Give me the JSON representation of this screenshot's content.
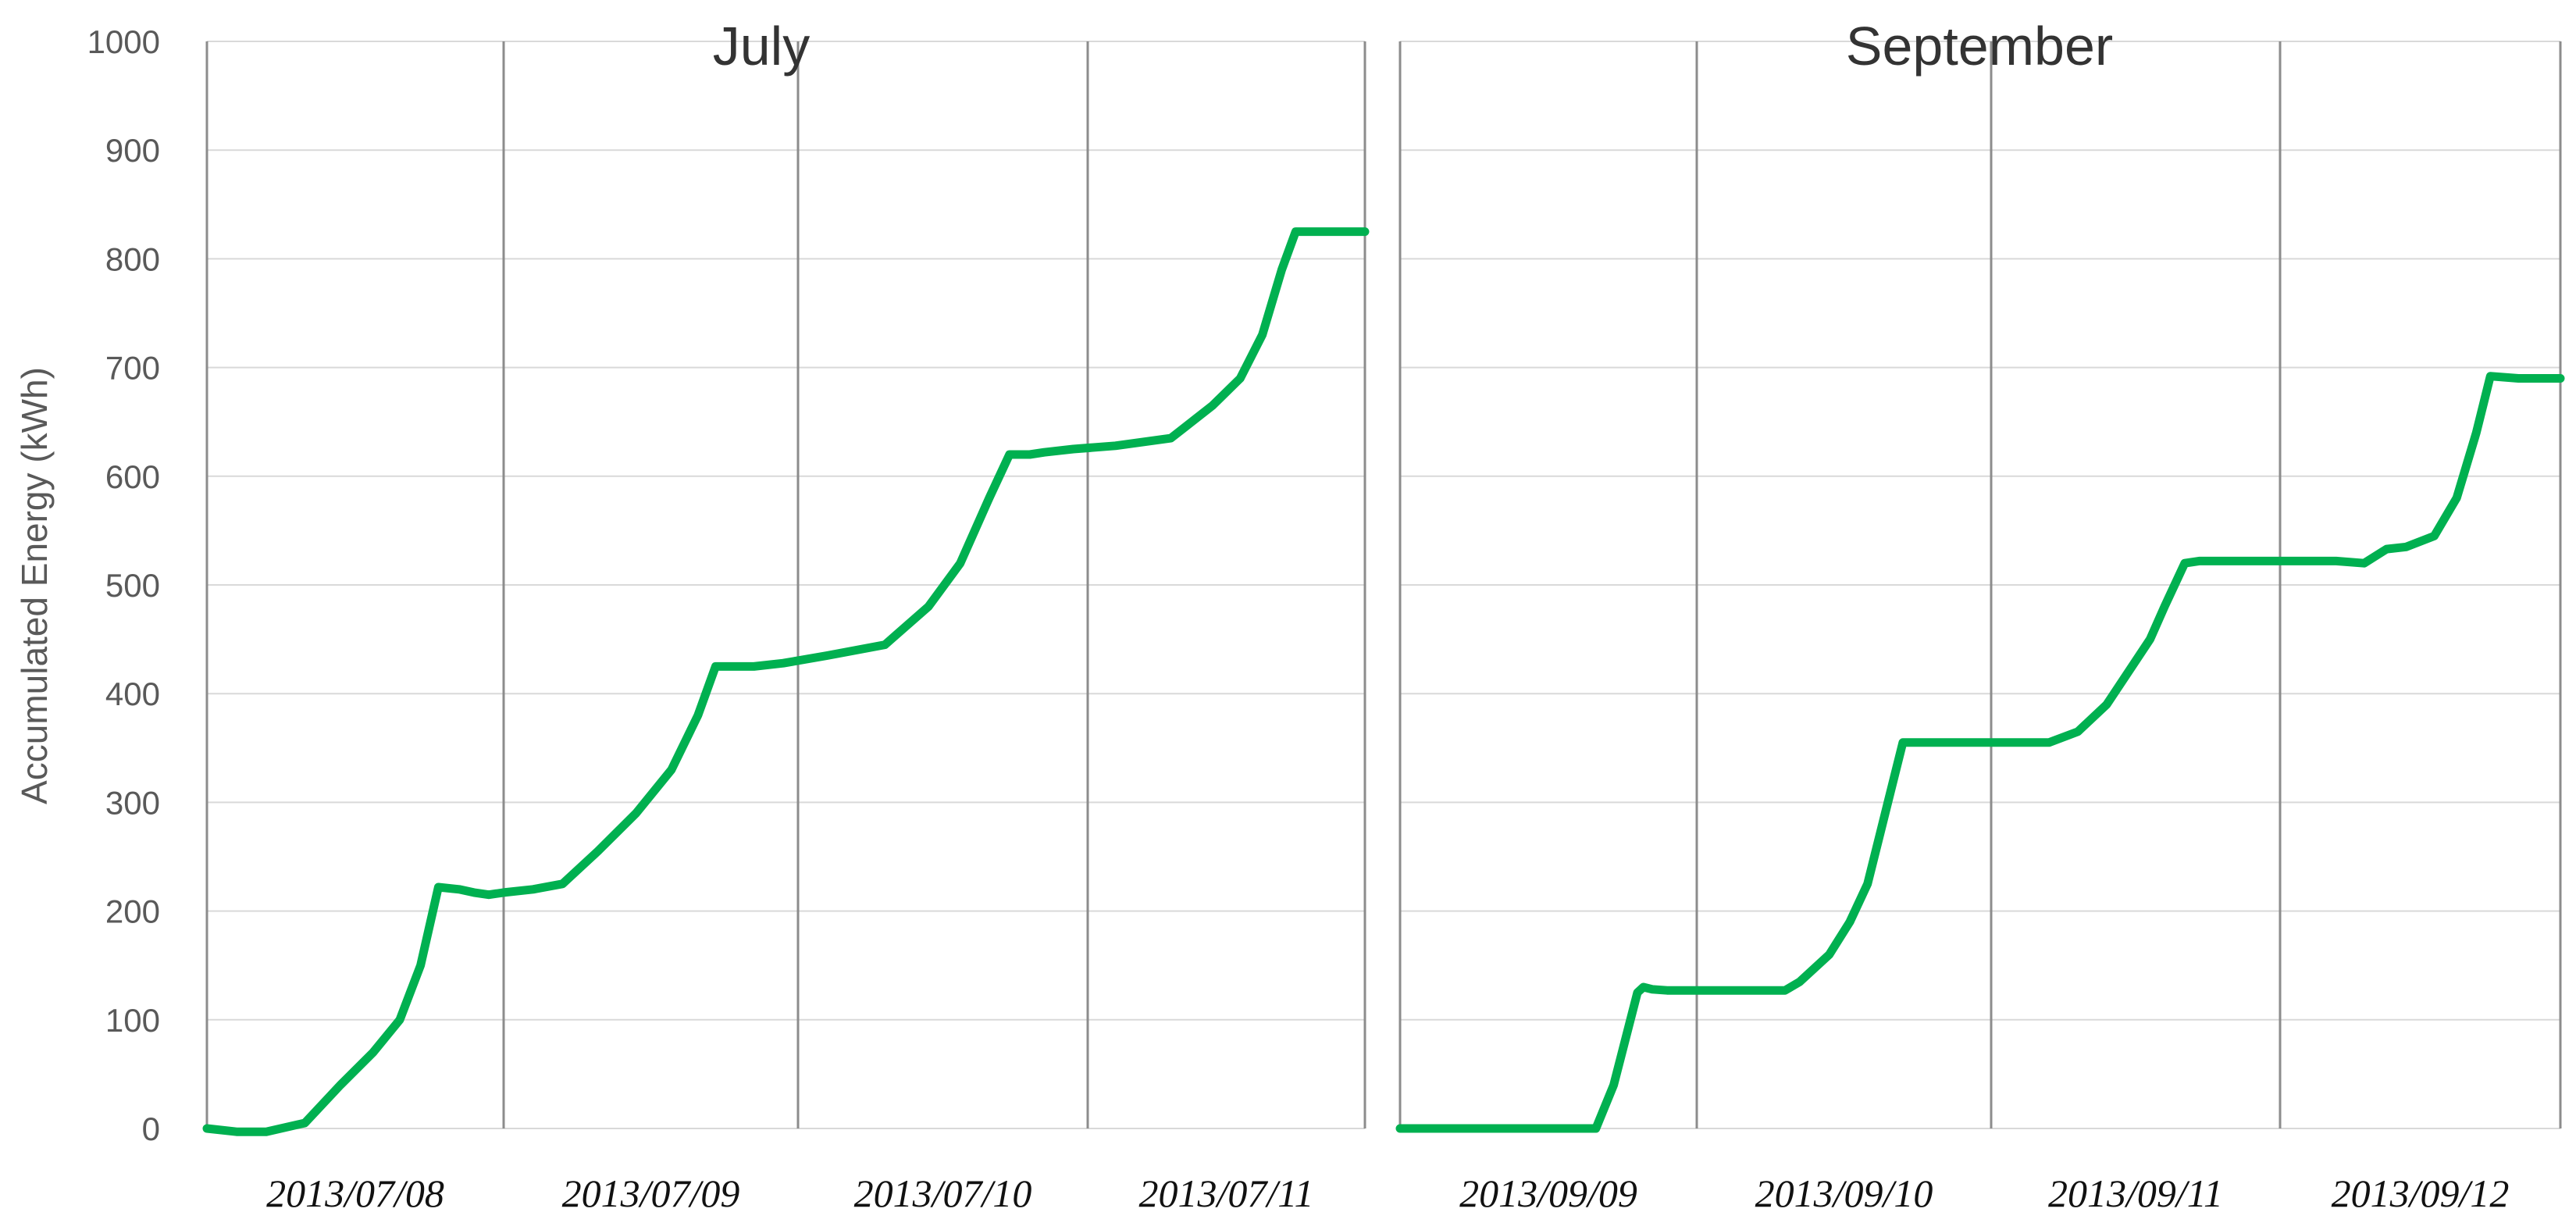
{
  "chart_data": {
    "type": "line",
    "ylabel": "Accumulated Energy (kWh)",
    "ylim": [
      0,
      1000
    ],
    "yticks": [
      "0",
      "100",
      "200",
      "300",
      "400",
      "500",
      "600",
      "700",
      "800",
      "900",
      "1000"
    ],
    "grid": true,
    "series_color": "#00b050",
    "panels": [
      {
        "title": "July",
        "day_labels": [
          "2013/07/08",
          "2013/07/09",
          "2013/07/10",
          "2013/07/11"
        ],
        "x_range_days": [
          0,
          4
        ],
        "series": [
          {
            "x": [
              0,
              0.1,
              0.2,
              0.33,
              0.45,
              0.56,
              0.65,
              0.72,
              0.78,
              0.85,
              0.9,
              0.95,
              1.0,
              1.1,
              1.2,
              1.32,
              1.45,
              1.57,
              1.66,
              1.72,
              1.78,
              1.85,
              1.95,
              2.1,
              2.3,
              2.45,
              2.56,
              2.66,
              2.73,
              2.8,
              2.85,
              2.95,
              3.1,
              3.3,
              3.45,
              3.55,
              3.63,
              3.7,
              3.75,
              3.85,
              4.0
            ],
            "y": [
              0,
              -3,
              -3,
              5,
              40,
              70,
              100,
              150,
              222,
              220,
              217,
              215,
              217,
              220,
              225,
              255,
              290,
              330,
              380,
              425,
              425,
              425,
              428,
              435,
              445,
              480,
              520,
              580,
              620,
              620,
              622,
              625,
              628,
              635,
              665,
              690,
              730,
              790,
              825,
              825,
              825
            ]
          }
        ]
      },
      {
        "title": "September",
        "day_labels": [
          "2013/09/09",
          "2013/09/10",
          "2013/09/11",
          "2013/09/12"
        ],
        "x_range_days": [
          0,
          4
        ],
        "series": [
          {
            "x": [
              0,
              0.3,
              0.5,
              0.66,
              0.72,
              0.8,
              0.82,
              0.85,
              0.9,
              1.0,
              1.2,
              1.3,
              1.35,
              1.45,
              1.52,
              1.58,
              1.64,
              1.7,
              1.75,
              1.8,
              1.85,
              2.0,
              2.2,
              2.3,
              2.4,
              2.5,
              2.55,
              2.6,
              2.67,
              2.72,
              2.78,
              3.0,
              3.2,
              3.3,
              3.38,
              3.45,
              3.55,
              3.63,
              3.7,
              3.75,
              3.85,
              4.0
            ],
            "y": [
              0,
              0,
              0,
              0,
              40,
              125,
              130,
              128,
              127,
              127,
              127,
              127,
              135,
              160,
              190,
              225,
              290,
              355,
              355,
              355,
              355,
              355,
              355,
              365,
              390,
              430,
              450,
              480,
              520,
              522,
              522,
              522,
              522,
              520,
              533,
              535,
              545,
              580,
              640,
              692,
              690,
              690
            ]
          }
        ]
      }
    ]
  }
}
